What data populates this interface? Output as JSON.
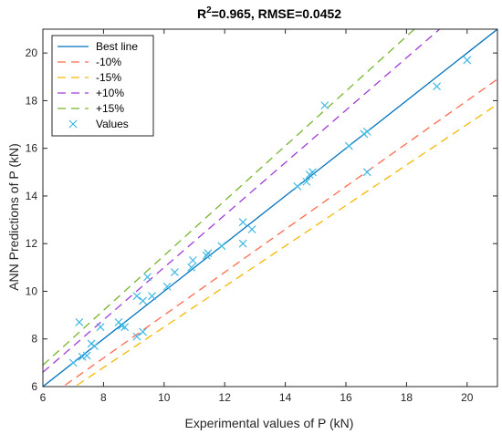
{
  "chart_data": {
    "type": "scatter",
    "title": "R²=0.965, RMSE=0.0452",
    "xlabel": "Experimental values of P (kN)",
    "ylabel": "ANN Predictions of P (kN)",
    "xlim": [
      6,
      21
    ],
    "ylim": [
      6,
      21
    ],
    "xticks": [
      6,
      8,
      10,
      12,
      14,
      16,
      18,
      20
    ],
    "yticks": [
      6,
      8,
      10,
      12,
      14,
      16,
      18,
      20
    ],
    "grid": false,
    "legend_position": "top-left",
    "lines": [
      {
        "name": "Best line",
        "slope": 1.0,
        "color": "#0072bd",
        "dash": "solid"
      },
      {
        "name": "-10%",
        "slope": 0.9,
        "color": "#ff6a4d",
        "dash": "dashed"
      },
      {
        "name": "-15%",
        "slope": 0.85,
        "color": "#f5b800",
        "dash": "dashed"
      },
      {
        "name": "+10%",
        "slope": 1.1,
        "color": "#a23bd6",
        "dash": "dashed"
      },
      {
        "name": "+15%",
        "slope": 1.15,
        "color": "#77b52e",
        "dash": "dashed"
      }
    ],
    "scatter": {
      "name": "Values",
      "marker": "x",
      "color": "#3fb9e3",
      "points": [
        [
          7.0,
          7.0
        ],
        [
          7.2,
          8.7
        ],
        [
          7.3,
          7.25
        ],
        [
          7.45,
          7.3
        ],
        [
          7.6,
          7.8
        ],
        [
          7.7,
          7.7
        ],
        [
          7.9,
          8.5
        ],
        [
          8.5,
          8.7
        ],
        [
          8.6,
          8.55
        ],
        [
          8.7,
          8.5
        ],
        [
          9.1,
          8.1
        ],
        [
          9.3,
          8.3
        ],
        [
          9.1,
          9.8
        ],
        [
          9.3,
          9.6
        ],
        [
          9.45,
          10.6
        ],
        [
          9.6,
          9.8
        ],
        [
          10.1,
          10.2
        ],
        [
          10.35,
          10.8
        ],
        [
          10.9,
          11.0
        ],
        [
          10.95,
          11.3
        ],
        [
          11.4,
          11.5
        ],
        [
          11.45,
          11.6
        ],
        [
          11.9,
          11.9
        ],
        [
          12.6,
          12.9
        ],
        [
          12.6,
          12.0
        ],
        [
          12.9,
          12.6
        ],
        [
          14.4,
          14.4
        ],
        [
          14.7,
          14.6
        ],
        [
          14.8,
          14.9
        ],
        [
          14.9,
          15.0
        ],
        [
          15.3,
          17.8
        ],
        [
          16.1,
          16.1
        ],
        [
          16.6,
          16.6
        ],
        [
          16.7,
          16.7
        ],
        [
          16.7,
          15.0
        ],
        [
          19.0,
          18.6
        ],
        [
          20.0,
          19.7
        ]
      ]
    }
  }
}
